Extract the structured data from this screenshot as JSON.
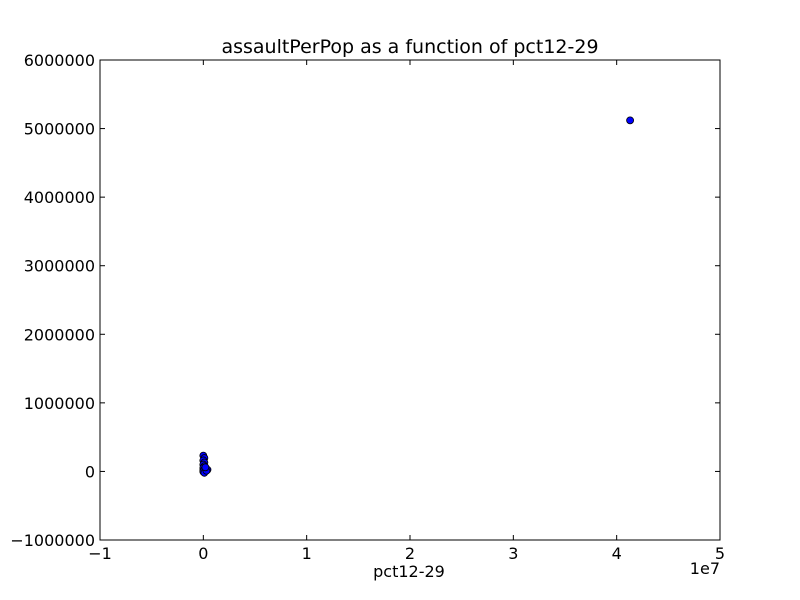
{
  "chart_data": {
    "type": "scatter",
    "title": "assaultPerPop as a function of pct12-29",
    "xlabel": "pct12-29",
    "ylabel": "",
    "x_offset_label": "1e7",
    "xlim": [
      -1,
      5
    ],
    "ylim": [
      -1000000,
      6000000
    ],
    "x_ticks": [
      -1,
      0,
      1,
      2,
      3,
      4,
      5
    ],
    "x_tick_labels": [
      "−1",
      "0",
      "1",
      "2",
      "3",
      "4",
      "5"
    ],
    "y_ticks": [
      -1000000,
      0,
      1000000,
      2000000,
      3000000,
      4000000,
      5000000,
      6000000
    ],
    "y_tick_labels": [
      "−1000000",
      "0",
      "1000000",
      "2000000",
      "3000000",
      "4000000",
      "5000000",
      "6000000"
    ],
    "grid": false,
    "marker_color": "#0000ff",
    "marker_edge_color": "#000000",
    "points": [
      {
        "x": 0.0,
        "y": 230000
      },
      {
        "x": 0.01,
        "y": 195000
      },
      {
        "x": 0.0,
        "y": 160000
      },
      {
        "x": 0.01,
        "y": 130000
      },
      {
        "x": 0.0,
        "y": 100000
      },
      {
        "x": 0.01,
        "y": 75000
      },
      {
        "x": 0.0,
        "y": 50000
      },
      {
        "x": 0.02,
        "y": 35000
      },
      {
        "x": 0.04,
        "y": 25000
      },
      {
        "x": 0.0,
        "y": 15000
      },
      {
        "x": 0.01,
        "y": 5000
      },
      {
        "x": 0.0,
        "y": -5000
      },
      {
        "x": 0.01,
        "y": -20000
      },
      {
        "x": 0.03,
        "y": 10000
      },
      {
        "x": 0.02,
        "y": 60000
      },
      {
        "x": 4.13,
        "y": 5120000
      }
    ]
  }
}
